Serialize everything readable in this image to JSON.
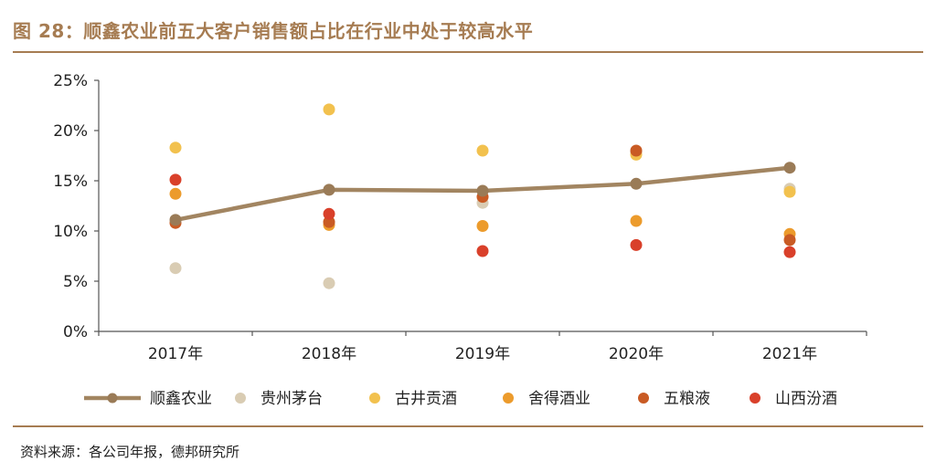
{
  "figure_title": "图 28：顺鑫农业前五大客户销售额占比在行业中处于较高水平",
  "source": "资料来源：各公司年报，德邦研究所",
  "chart_data": {
    "type": "scatter",
    "categories": [
      "2017年",
      "2018年",
      "2019年",
      "2020年",
      "2021年"
    ],
    "ylim": [
      0,
      25
    ],
    "yticks": [
      0,
      5,
      10,
      15,
      20,
      25
    ],
    "ytick_labels": [
      "0%",
      "5%",
      "10%",
      "15%",
      "20%",
      "25%"
    ],
    "series": [
      {
        "name": "顺鑫农业",
        "style": "line",
        "color": "#a28561",
        "values": [
          11.1,
          14.1,
          14.0,
          14.7,
          16.3
        ]
      },
      {
        "name": "贵州茅台",
        "style": "point",
        "color": "#d9ccb3",
        "values": [
          6.3,
          4.8,
          12.8,
          17.8,
          14.2
        ]
      },
      {
        "name": "古井贡酒",
        "style": "point",
        "color": "#f2c14e",
        "values": [
          18.3,
          22.1,
          18.0,
          17.6,
          13.9
        ]
      },
      {
        "name": "舍得酒业",
        "style": "point",
        "color": "#ec9b2c",
        "values": [
          13.7,
          10.6,
          10.5,
          11.0,
          9.7
        ]
      },
      {
        "name": "五粮液",
        "style": "point",
        "color": "#c95b24",
        "values": [
          10.8,
          10.9,
          13.4,
          18.0,
          9.1
        ]
      },
      {
        "name": "山西汾酒",
        "style": "point",
        "color": "#d9402a",
        "values": [
          15.1,
          11.7,
          8.0,
          8.6,
          7.9
        ]
      }
    ],
    "legend_position": "bottom"
  }
}
